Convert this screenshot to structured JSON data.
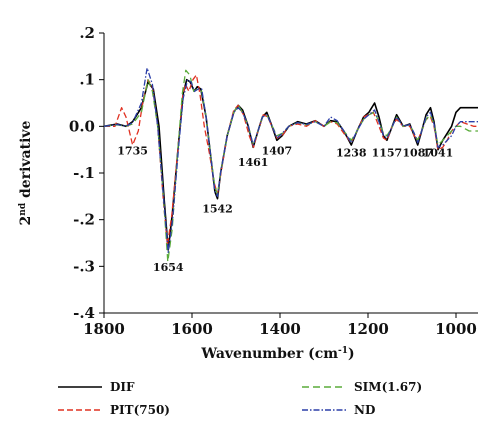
{
  "chart_data": {
    "type": "line",
    "xlabel_main": "Wavenumber (cm",
    "xlabel_sup": "-1",
    "xlabel_end": ")",
    "ylabel_base": "2",
    "ylabel_sup": "nd",
    "ylabel_rest": " derivative",
    "xlim": [
      1800,
      950
    ],
    "ylim": [
      -0.4,
      0.2
    ],
    "x_reversed": true,
    "x_ticks": [
      {
        "value": 1800,
        "label": "1800"
      },
      {
        "value": 1600,
        "label": "1600"
      },
      {
        "value": 1400,
        "label": "1400"
      },
      {
        "value": 1200,
        "label": "1200"
      },
      {
        "value": 1000,
        "label": "1000"
      }
    ],
    "y_ticks": [
      {
        "value": 0.2,
        "label": ".2"
      },
      {
        "value": 0.1,
        "label": ".1"
      },
      {
        "value": 0.0,
        "label": "0.0"
      },
      {
        "value": -0.1,
        "label": "-.1"
      },
      {
        "value": -0.2,
        "label": "-.2"
      },
      {
        "value": -0.3,
        "label": "-.3"
      },
      {
        "value": -0.4,
        "label": "-.4"
      }
    ],
    "grid": false,
    "legend_position": "bottom",
    "annotations": [
      {
        "x": 1735,
        "y": -0.06,
        "text": "1735"
      },
      {
        "x": 1654,
        "y": -0.31,
        "text": "1654"
      },
      {
        "x": 1542,
        "y": -0.185,
        "text": "1542"
      },
      {
        "x": 1461,
        "y": -0.085,
        "text": "1461"
      },
      {
        "x": 1407,
        "y": -0.06,
        "text": "1407"
      },
      {
        "x": 1238,
        "y": -0.065,
        "text": "1238"
      },
      {
        "x": 1157,
        "y": -0.065,
        "text": "1157"
      },
      {
        "x": 1087,
        "y": -0.065,
        "text": "1087"
      },
      {
        "x": 1041,
        "y": -0.065,
        "text": "1041"
      }
    ],
    "series": [
      {
        "name": "DIF",
        "color": "#000000",
        "dash": "solid",
        "points": [
          [
            1800,
            0.0
          ],
          [
            1770,
            0.005
          ],
          [
            1750,
            0.0
          ],
          [
            1735,
            0.01
          ],
          [
            1715,
            0.04
          ],
          [
            1700,
            0.095
          ],
          [
            1688,
            0.08
          ],
          [
            1675,
            0.0
          ],
          [
            1663,
            -0.16
          ],
          [
            1654,
            -0.265
          ],
          [
            1645,
            -0.19
          ],
          [
            1630,
            -0.03
          ],
          [
            1620,
            0.07
          ],
          [
            1612,
            0.1
          ],
          [
            1604,
            0.095
          ],
          [
            1595,
            0.075
          ],
          [
            1588,
            0.085
          ],
          [
            1580,
            0.08
          ],
          [
            1568,
            0.02
          ],
          [
            1558,
            -0.06
          ],
          [
            1548,
            -0.14
          ],
          [
            1542,
            -0.155
          ],
          [
            1535,
            -0.1
          ],
          [
            1520,
            -0.02
          ],
          [
            1505,
            0.03
          ],
          [
            1495,
            0.045
          ],
          [
            1485,
            0.035
          ],
          [
            1472,
            0.0
          ],
          [
            1461,
            -0.045
          ],
          [
            1450,
            -0.01
          ],
          [
            1440,
            0.02
          ],
          [
            1430,
            0.03
          ],
          [
            1420,
            0.005
          ],
          [
            1407,
            -0.03
          ],
          [
            1395,
            -0.02
          ],
          [
            1380,
            0.0
          ],
          [
            1360,
            0.01
          ],
          [
            1340,
            0.005
          ],
          [
            1320,
            0.012
          ],
          [
            1300,
            0.0
          ],
          [
            1285,
            0.012
          ],
          [
            1270,
            0.01
          ],
          [
            1255,
            -0.01
          ],
          [
            1238,
            -0.04
          ],
          [
            1225,
            -0.01
          ],
          [
            1210,
            0.02
          ],
          [
            1198,
            0.03
          ],
          [
            1185,
            0.05
          ],
          [
            1175,
            0.02
          ],
          [
            1165,
            -0.02
          ],
          [
            1157,
            -0.03
          ],
          [
            1147,
            -0.005
          ],
          [
            1135,
            0.025
          ],
          [
            1120,
            0.0
          ],
          [
            1105,
            0.005
          ],
          [
            1095,
            -0.02
          ],
          [
            1087,
            -0.04
          ],
          [
            1078,
            -0.01
          ],
          [
            1068,
            0.025
          ],
          [
            1058,
            0.04
          ],
          [
            1050,
            0.01
          ],
          [
            1041,
            -0.05
          ],
          [
            1030,
            -0.03
          ],
          [
            1020,
            -0.015
          ],
          [
            1010,
            0.0
          ],
          [
            1000,
            0.03
          ],
          [
            990,
            0.04
          ],
          [
            950,
            0.04
          ]
        ]
      },
      {
        "name": "PIT(750)",
        "color": "#e03020",
        "dash": "6,3",
        "points": [
          [
            1800,
            0.0
          ],
          [
            1775,
            0.0
          ],
          [
            1760,
            0.04
          ],
          [
            1750,
            0.02
          ],
          [
            1735,
            -0.04
          ],
          [
            1722,
            -0.01
          ],
          [
            1712,
            0.05
          ],
          [
            1700,
            0.1
          ],
          [
            1690,
            0.085
          ],
          [
            1678,
            0.0
          ],
          [
            1665,
            -0.16
          ],
          [
            1656,
            -0.255
          ],
          [
            1646,
            -0.19
          ],
          [
            1632,
            -0.05
          ],
          [
            1622,
            0.06
          ],
          [
            1615,
            0.09
          ],
          [
            1607,
            0.075
          ],
          [
            1598,
            0.1
          ],
          [
            1590,
            0.11
          ],
          [
            1582,
            0.07
          ],
          [
            1572,
            0.0
          ],
          [
            1560,
            -0.06
          ],
          [
            1550,
            -0.12
          ],
          [
            1542,
            -0.145
          ],
          [
            1534,
            -0.1
          ],
          [
            1520,
            -0.02
          ],
          [
            1505,
            0.035
          ],
          [
            1495,
            0.045
          ],
          [
            1483,
            0.025
          ],
          [
            1470,
            -0.02
          ],
          [
            1460,
            -0.045
          ],
          [
            1450,
            -0.01
          ],
          [
            1438,
            0.025
          ],
          [
            1428,
            0.02
          ],
          [
            1416,
            -0.005
          ],
          [
            1407,
            -0.025
          ],
          [
            1395,
            -0.02
          ],
          [
            1380,
            0.0
          ],
          [
            1360,
            0.005
          ],
          [
            1340,
            0.0
          ],
          [
            1320,
            0.012
          ],
          [
            1300,
            0.0
          ],
          [
            1285,
            0.01
          ],
          [
            1270,
            0.005
          ],
          [
            1255,
            -0.015
          ],
          [
            1238,
            -0.035
          ],
          [
            1225,
            -0.01
          ],
          [
            1210,
            0.02
          ],
          [
            1200,
            0.025
          ],
          [
            1188,
            0.03
          ],
          [
            1175,
            0.0
          ],
          [
            1165,
            -0.025
          ],
          [
            1157,
            -0.03
          ],
          [
            1145,
            0.0
          ],
          [
            1135,
            0.015
          ],
          [
            1120,
            0.0
          ],
          [
            1105,
            0.0
          ],
          [
            1095,
            -0.02
          ],
          [
            1087,
            -0.03
          ],
          [
            1078,
            -0.01
          ],
          [
            1068,
            0.015
          ],
          [
            1058,
            0.02
          ],
          [
            1050,
            0.0
          ],
          [
            1041,
            -0.05
          ],
          [
            1030,
            -0.045
          ],
          [
            1020,
            -0.03
          ],
          [
            1010,
            -0.01
          ],
          [
            1000,
            0.0
          ],
          [
            990,
            0.01
          ],
          [
            960,
            0.0
          ],
          [
            950,
            0.0
          ]
        ]
      },
      {
        "name": "SIM(1.67)",
        "color": "#5aab3a",
        "dash": "7,4",
        "points": [
          [
            1800,
            0.0
          ],
          [
            1770,
            0.003
          ],
          [
            1750,
            0.0
          ],
          [
            1735,
            0.005
          ],
          [
            1715,
            0.03
          ],
          [
            1700,
            0.1
          ],
          [
            1690,
            0.075
          ],
          [
            1678,
            0.0
          ],
          [
            1665,
            -0.15
          ],
          [
            1655,
            -0.29
          ],
          [
            1645,
            -0.22
          ],
          [
            1632,
            -0.05
          ],
          [
            1622,
            0.07
          ],
          [
            1614,
            0.12
          ],
          [
            1605,
            0.11
          ],
          [
            1596,
            0.075
          ],
          [
            1588,
            0.08
          ],
          [
            1578,
            0.075
          ],
          [
            1568,
            0.02
          ],
          [
            1558,
            -0.06
          ],
          [
            1548,
            -0.13
          ],
          [
            1542,
            -0.145
          ],
          [
            1535,
            -0.1
          ],
          [
            1520,
            -0.02
          ],
          [
            1505,
            0.03
          ],
          [
            1495,
            0.045
          ],
          [
            1485,
            0.03
          ],
          [
            1472,
            0.0
          ],
          [
            1461,
            -0.04
          ],
          [
            1450,
            -0.01
          ],
          [
            1440,
            0.02
          ],
          [
            1430,
            0.025
          ],
          [
            1420,
            0.005
          ],
          [
            1407,
            -0.02
          ],
          [
            1395,
            -0.015
          ],
          [
            1380,
            0.0
          ],
          [
            1360,
            0.008
          ],
          [
            1340,
            0.003
          ],
          [
            1320,
            0.01
          ],
          [
            1300,
            0.0
          ],
          [
            1285,
            0.01
          ],
          [
            1270,
            0.008
          ],
          [
            1255,
            -0.01
          ],
          [
            1238,
            -0.03
          ],
          [
            1225,
            -0.01
          ],
          [
            1210,
            0.015
          ],
          [
            1198,
            0.025
          ],
          [
            1185,
            0.03
          ],
          [
            1175,
            0.01
          ],
          [
            1165,
            -0.015
          ],
          [
            1157,
            -0.02
          ],
          [
            1147,
            -0.005
          ],
          [
            1135,
            0.02
          ],
          [
            1120,
            0.0
          ],
          [
            1105,
            0.003
          ],
          [
            1095,
            -0.015
          ],
          [
            1087,
            -0.03
          ],
          [
            1078,
            -0.01
          ],
          [
            1068,
            0.015
          ],
          [
            1058,
            0.025
          ],
          [
            1050,
            0.005
          ],
          [
            1041,
            -0.04
          ],
          [
            1030,
            -0.03
          ],
          [
            1020,
            -0.02
          ],
          [
            1010,
            -0.01
          ],
          [
            1000,
            0.0
          ],
          [
            990,
            0.0
          ],
          [
            970,
            -0.01
          ],
          [
            950,
            -0.01
          ]
        ]
      },
      {
        "name": "ND",
        "color": "#2b3ea8",
        "dash": "6,2,1.5,2",
        "points": [
          [
            1800,
            0.0
          ],
          [
            1770,
            0.004
          ],
          [
            1750,
            0.0
          ],
          [
            1735,
            0.008
          ],
          [
            1715,
            0.05
          ],
          [
            1702,
            0.125
          ],
          [
            1690,
            0.09
          ],
          [
            1678,
            0.0
          ],
          [
            1665,
            -0.15
          ],
          [
            1654,
            -0.27
          ],
          [
            1644,
            -0.2
          ],
          [
            1630,
            -0.04
          ],
          [
            1620,
            0.06
          ],
          [
            1610,
            0.1
          ],
          [
            1602,
            0.095
          ],
          [
            1594,
            0.075
          ],
          [
            1586,
            0.08
          ],
          [
            1578,
            0.08
          ],
          [
            1568,
            0.02
          ],
          [
            1558,
            -0.06
          ],
          [
            1548,
            -0.14
          ],
          [
            1542,
            -0.15
          ],
          [
            1535,
            -0.1
          ],
          [
            1520,
            -0.02
          ],
          [
            1505,
            0.03
          ],
          [
            1495,
            0.04
          ],
          [
            1485,
            0.03
          ],
          [
            1472,
            0.0
          ],
          [
            1461,
            -0.04
          ],
          [
            1450,
            -0.01
          ],
          [
            1440,
            0.02
          ],
          [
            1430,
            0.025
          ],
          [
            1420,
            0.005
          ],
          [
            1407,
            -0.025
          ],
          [
            1395,
            -0.015
          ],
          [
            1380,
            0.0
          ],
          [
            1360,
            0.008
          ],
          [
            1340,
            0.004
          ],
          [
            1320,
            0.01
          ],
          [
            1300,
            0.0
          ],
          [
            1285,
            0.02
          ],
          [
            1270,
            0.012
          ],
          [
            1255,
            -0.01
          ],
          [
            1238,
            -0.035
          ],
          [
            1225,
            -0.01
          ],
          [
            1210,
            0.015
          ],
          [
            1198,
            0.025
          ],
          [
            1185,
            0.035
          ],
          [
            1175,
            0.01
          ],
          [
            1165,
            -0.02
          ],
          [
            1157,
            -0.025
          ],
          [
            1147,
            -0.005
          ],
          [
            1135,
            0.02
          ],
          [
            1120,
            0.0
          ],
          [
            1105,
            0.004
          ],
          [
            1095,
            -0.015
          ],
          [
            1087,
            -0.035
          ],
          [
            1078,
            -0.01
          ],
          [
            1068,
            0.02
          ],
          [
            1058,
            0.03
          ],
          [
            1050,
            0.005
          ],
          [
            1041,
            -0.045
          ],
          [
            1030,
            -0.04
          ],
          [
            1020,
            -0.03
          ],
          [
            1010,
            -0.02
          ],
          [
            1000,
            0.0
          ],
          [
            990,
            0.01
          ],
          [
            970,
            0.01
          ],
          [
            950,
            0.01
          ]
        ]
      }
    ]
  }
}
